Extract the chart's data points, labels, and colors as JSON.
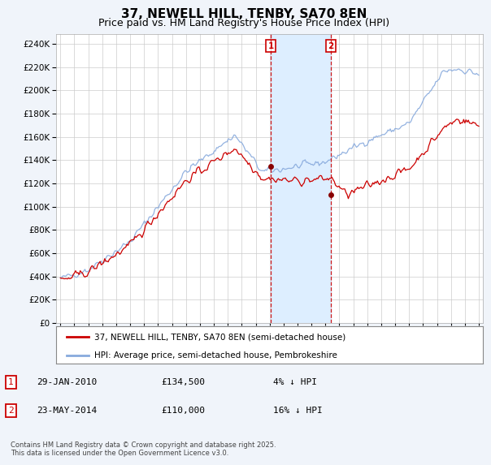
{
  "title": "37, NEWELL HILL, TENBY, SA70 8EN",
  "subtitle": "Price paid vs. HM Land Registry's House Price Index (HPI)",
  "ylabel_ticks": [
    0,
    20000,
    40000,
    60000,
    80000,
    100000,
    120000,
    140000,
    160000,
    180000,
    200000,
    220000,
    240000
  ],
  "ylim": [
    0,
    248000
  ],
  "xlim_start": 1994.7,
  "xlim_end": 2025.3,
  "sale1_date": 2010.08,
  "sale1_price": 134500,
  "sale2_date": 2014.39,
  "sale2_price": 110000,
  "line_color_red": "#cc0000",
  "line_color_blue": "#88aadd",
  "shade_color": "#ddeeff",
  "marker_box_color": "#cc0000",
  "legend_text_red": "37, NEWELL HILL, TENBY, SA70 8EN (semi-detached house)",
  "legend_text_blue": "HPI: Average price, semi-detached house, Pembrokeshire",
  "footer": "Contains HM Land Registry data © Crown copyright and database right 2025.\nThis data is licensed under the Open Government Licence v3.0.",
  "background_color": "#f0f4fa",
  "plot_bg_color": "#ffffff",
  "title_fontsize": 11,
  "subtitle_fontsize": 9
}
